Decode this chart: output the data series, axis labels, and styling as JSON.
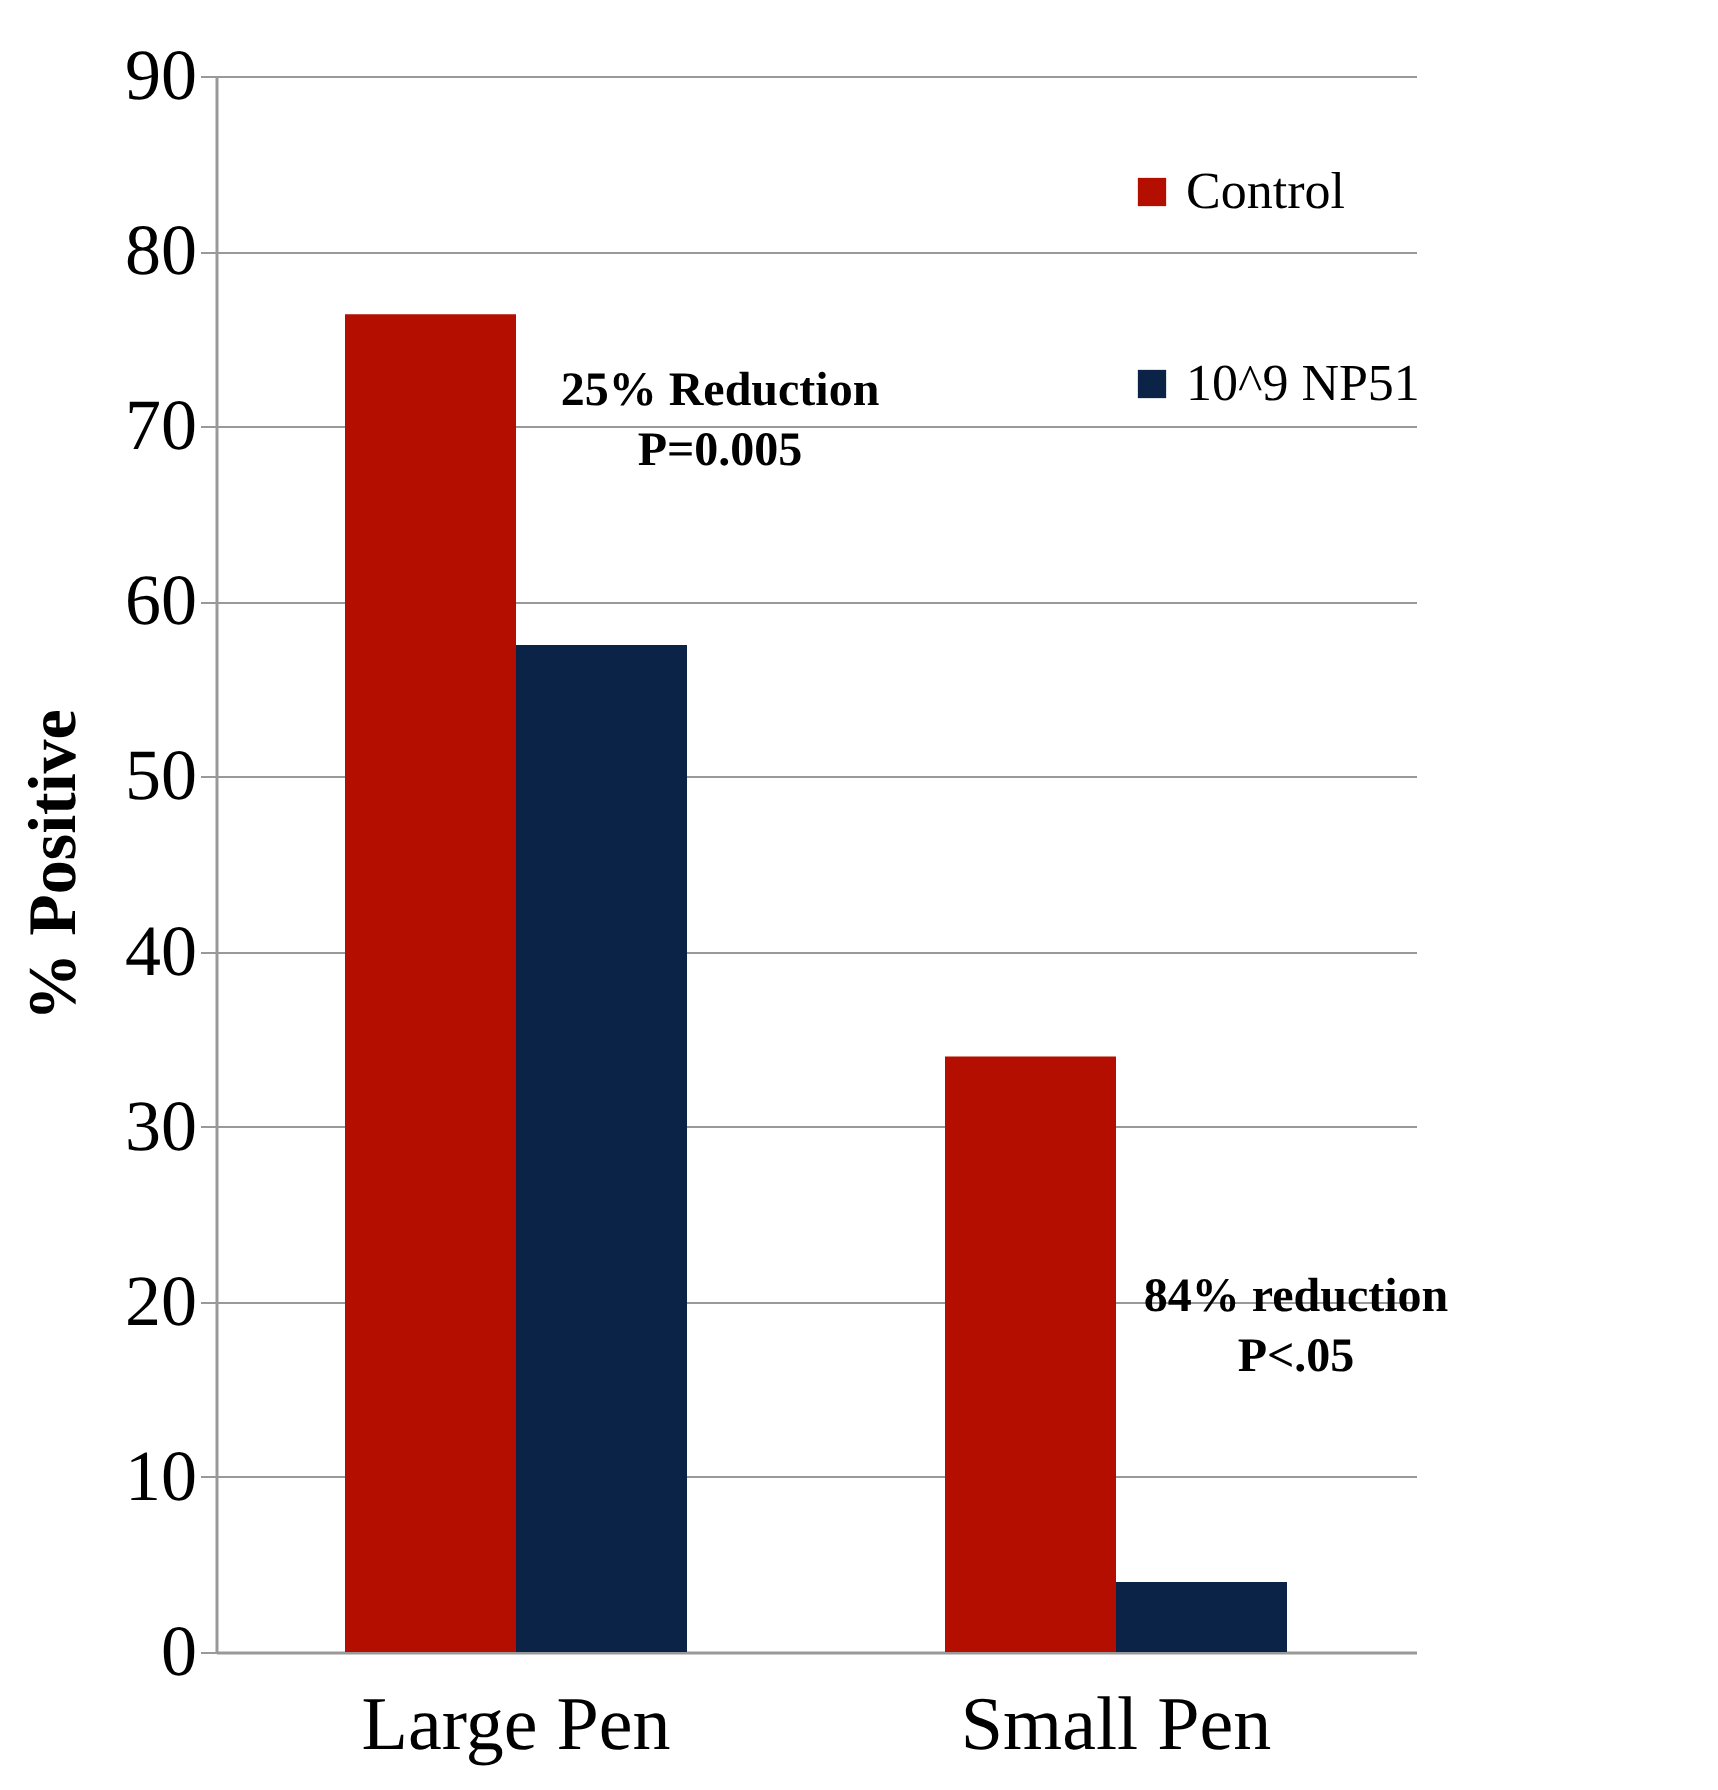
{
  "chart_data": {
    "type": "bar",
    "ylabel": "% Positive",
    "categories": [
      "Large Pen",
      "Small Pen"
    ],
    "series": [
      {
        "name": "Control",
        "color": "#b40e00",
        "values": [
          76.4,
          34
        ]
      },
      {
        "name": "10^9 NP51",
        "color": "#0a2347",
        "values": [
          57.5,
          4
        ]
      }
    ],
    "ylim": [
      0,
      90
    ],
    "yticks": [
      0,
      10,
      20,
      30,
      40,
      50,
      60,
      70,
      80,
      90
    ],
    "grid": "y",
    "legend": "top right",
    "annotations": [
      "25% Reduction\nP=0.005",
      "84% reduction\nP<.05"
    ]
  }
}
